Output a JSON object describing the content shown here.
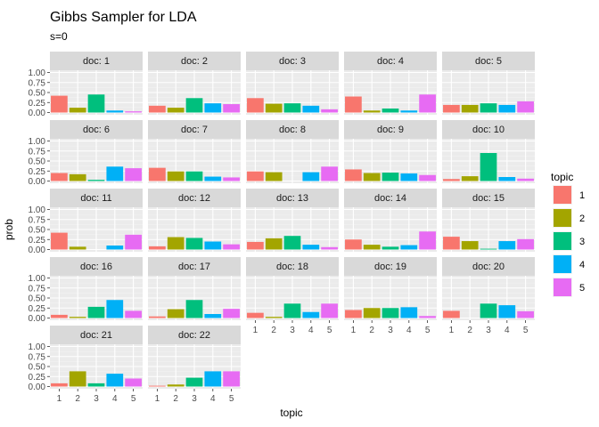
{
  "chart_data": {
    "type": "bar",
    "title": "Gibbs Sampler for LDA",
    "subtitle": "s=0",
    "xlabel": "topic",
    "ylabel": "prob",
    "ylim": [
      0,
      1
    ],
    "yticks": [
      "0.00",
      "0.25",
      "0.50",
      "0.75",
      "1.00"
    ],
    "categories": [
      "1",
      "2",
      "3",
      "4",
      "5"
    ],
    "legend": {
      "title": "topic",
      "position": "right",
      "labels": [
        "1",
        "2",
        "3",
        "4",
        "5"
      ]
    },
    "colors": [
      "#F8766D",
      "#A3A500",
      "#00BF7D",
      "#00B0F6",
      "#E76BF3"
    ],
    "facets": [
      {
        "label": "doc: 1",
        "values": [
          0.42,
          0.12,
          0.45,
          0.05,
          0.03
        ]
      },
      {
        "label": "doc: 2",
        "values": [
          0.17,
          0.12,
          0.36,
          0.23,
          0.21
        ]
      },
      {
        "label": "doc: 3",
        "values": [
          0.36,
          0.22,
          0.23,
          0.17,
          0.08
        ]
      },
      {
        "label": "doc: 4",
        "values": [
          0.4,
          0.05,
          0.1,
          0.05,
          0.45
        ]
      },
      {
        "label": "doc: 5",
        "values": [
          0.19,
          0.19,
          0.23,
          0.19,
          0.28
        ]
      },
      {
        "label": "doc: 6",
        "values": [
          0.2,
          0.17,
          0.03,
          0.36,
          0.32
        ]
      },
      {
        "label": "doc: 7",
        "values": [
          0.33,
          0.24,
          0.24,
          0.11,
          0.09
        ]
      },
      {
        "label": "doc: 8",
        "values": [
          0.24,
          0.22,
          0.0,
          0.22,
          0.36
        ]
      },
      {
        "label": "doc: 9",
        "values": [
          0.29,
          0.2,
          0.21,
          0.19,
          0.15
        ]
      },
      {
        "label": "doc: 10",
        "values": [
          0.05,
          0.12,
          0.7,
          0.1,
          0.06
        ]
      },
      {
        "label": "doc: 11",
        "values": [
          0.42,
          0.07,
          0.0,
          0.1,
          0.37
        ]
      },
      {
        "label": "doc: 12",
        "values": [
          0.08,
          0.31,
          0.29,
          0.2,
          0.13
        ]
      },
      {
        "label": "doc: 13",
        "values": [
          0.19,
          0.28,
          0.34,
          0.12,
          0.06
        ]
      },
      {
        "label": "doc: 14",
        "values": [
          0.25,
          0.12,
          0.07,
          0.11,
          0.45
        ]
      },
      {
        "label": "doc: 15",
        "values": [
          0.32,
          0.21,
          0.02,
          0.21,
          0.26
        ]
      },
      {
        "label": "doc: 16",
        "values": [
          0.08,
          0.03,
          0.28,
          0.45,
          0.18
        ]
      },
      {
        "label": "doc: 17",
        "values": [
          0.04,
          0.22,
          0.45,
          0.1,
          0.23
        ]
      },
      {
        "label": "doc: 18",
        "values": [
          0.13,
          0.03,
          0.36,
          0.15,
          0.36
        ]
      },
      {
        "label": "doc: 19",
        "values": [
          0.2,
          0.25,
          0.25,
          0.27,
          0.05
        ]
      },
      {
        "label": "doc: 20",
        "values": [
          0.18,
          0.0,
          0.36,
          0.32,
          0.17
        ]
      },
      {
        "label": "doc: 21",
        "values": [
          0.08,
          0.38,
          0.08,
          0.32,
          0.2
        ]
      },
      {
        "label": "doc: 22",
        "values": [
          0.02,
          0.05,
          0.22,
          0.38,
          0.38
        ]
      }
    ],
    "grid": true
  }
}
